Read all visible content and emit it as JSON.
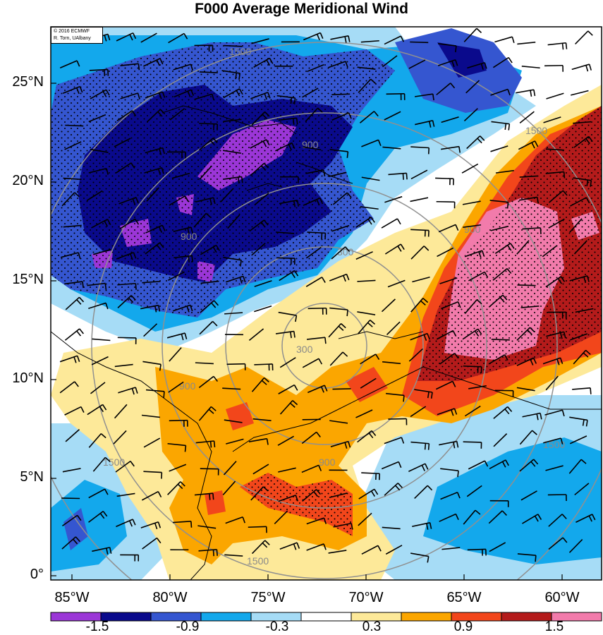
{
  "title": "F000 Average Meridional Wind",
  "credit": {
    "line1": "© 2016 ECMWF",
    "line2": "R. Torn, UAlbany"
  },
  "latitude_labels": [
    "25°N",
    "20°N",
    "15°N",
    "10°N",
    "5°N",
    "0°"
  ],
  "longitude_labels": [
    "85°W",
    "80°W",
    "75°W",
    "70°W",
    "65°W",
    "60°W"
  ],
  "contour_labels": [
    "1500",
    "900",
    "300",
    "900",
    "1500",
    "900",
    "900",
    "1500",
    "1500",
    "300",
    "1500",
    "900"
  ],
  "colorbar": {
    "tick_labels": [
      "-1.5",
      "-0.9",
      "-0.3",
      "0.3",
      "0.9",
      "1.5"
    ],
    "colors": [
      "#9b36d7",
      "#0a0a8c",
      "#3556d0",
      "#13a8ec",
      "#a6dcf6",
      "#ffffff",
      "#fde999",
      "#fba600",
      "#f2461b",
      "#b41b1b",
      "#f27bab"
    ]
  },
  "colors": {
    "strong_negative": "#0a0a8c",
    "positive_peak": "#f27bab",
    "range_ring": "#909090"
  }
}
